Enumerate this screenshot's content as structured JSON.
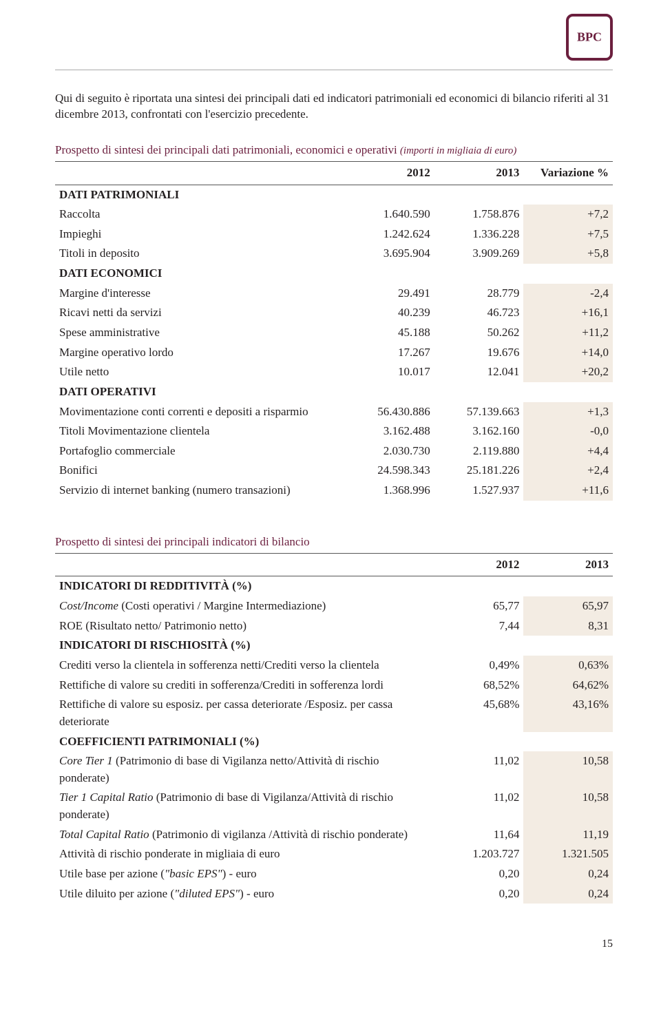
{
  "intro": "Qui di seguito è riportata una sintesi dei principali dati ed indicatori patrimoniali ed economici di bilancio riferiti al 31 dicembre 2013, confrontati con l'esercizio precedente.",
  "table1": {
    "title": "Prospetto di sintesi dei principali dati patrimoniali, economici e operativi",
    "note": "(importi in migliaia di euro)",
    "headers": [
      "2012",
      "2013",
      "Variazione %"
    ],
    "sections": [
      {
        "heading": "DATI PATRIMONIALI",
        "rows": [
          {
            "label": "Raccolta",
            "a": "1.640.590",
            "b": "1.758.876",
            "c": "+7,2"
          },
          {
            "label": "Impieghi",
            "a": "1.242.624",
            "b": "1.336.228",
            "c": "+7,5"
          },
          {
            "label": "Titoli in deposito",
            "a": "3.695.904",
            "b": "3.909.269",
            "c": "+5,8"
          }
        ]
      },
      {
        "heading": "DATI ECONOMICI",
        "rows": [
          {
            "label": "Margine d'interesse",
            "a": "29.491",
            "b": "28.779",
            "c": "-2,4"
          },
          {
            "label": "Ricavi netti da servizi",
            "a": "40.239",
            "b": "46.723",
            "c": "+16,1"
          },
          {
            "label": "Spese amministrative",
            "a": "45.188",
            "b": "50.262",
            "c": "+11,2"
          },
          {
            "label": "Margine operativo lordo",
            "a": "17.267",
            "b": "19.676",
            "c": "+14,0"
          },
          {
            "label": "Utile netto",
            "a": "10.017",
            "b": "12.041",
            "c": "+20,2"
          }
        ]
      },
      {
        "heading": "DATI OPERATIVI",
        "rows": [
          {
            "label": "Movimentazione conti correnti e depositi a risparmio",
            "a": "56.430.886",
            "b": "57.139.663",
            "c": "+1,3"
          },
          {
            "label": "Titoli Movimentazione clientela",
            "a": "3.162.488",
            "b": "3.162.160",
            "c": "-0,0"
          },
          {
            "label": "Portafoglio commerciale",
            "a": "2.030.730",
            "b": "2.119.880",
            "c": "+4,4"
          },
          {
            "label": "Bonifici",
            "a": "24.598.343",
            "b": "25.181.226",
            "c": "+2,4"
          },
          {
            "label": "Servizio di internet banking (numero transazioni)",
            "a": "1.368.996",
            "b": "1.527.937",
            "c": "+11,6"
          }
        ]
      }
    ]
  },
  "table2": {
    "title": "Prospetto di sintesi dei principali indicatori di bilancio",
    "headers": [
      "2012",
      "2013"
    ],
    "sections": [
      {
        "heading": "INDICATORI DI REDDITIVITÀ (%)",
        "rows": [
          {
            "label_pre_i": "Cost/Income",
            "label_post": " (Costi operativi / Margine Intermediazione)",
            "a": "65,77",
            "b": "65,97"
          },
          {
            "label": "ROE (Risultato netto/ Patrimonio netto)",
            "a": "7,44",
            "b": "8,31"
          }
        ]
      },
      {
        "heading": "INDICATORI DI RISCHIOSITÀ (%)",
        "rows": [
          {
            "label": "Crediti verso la clientela in sofferenza netti/Crediti verso la clientela",
            "a": "0,49%",
            "b": "0,63%"
          },
          {
            "label": "Rettifiche di valore su crediti in sofferenza/Crediti in sofferenza lordi",
            "a": "68,52%",
            "b": "64,62%"
          },
          {
            "label": "Rettifiche di valore su esposiz. per cassa deteriorate /Esposiz. per cassa deteriorate",
            "a": "45,68%",
            "b": "43,16%"
          }
        ]
      },
      {
        "heading": "COEFFICIENTI PATRIMONIALI (%)",
        "rows": [
          {
            "label_pre_i": "Core Tier 1",
            "label_post": " (Patrimonio di base di Vigilanza netto/Attività di rischio ponderate)",
            "a": "11,02",
            "b": "10,58"
          },
          {
            "label_pre_i": "Tier 1 Capital Ratio",
            "label_post": " (Patrimonio di base di Vigilanza/Attività di rischio ponderate)",
            "a": "11,02",
            "b": "10,58"
          },
          {
            "label_pre_i": "Total Capital Ratio",
            "label_post": " (Patrimonio di vigilanza /Attività di rischio ponderate)",
            "a": "11,64",
            "b": "11,19"
          },
          {
            "label": "Attività di rischio ponderate in migliaia di euro",
            "a": "1.203.727",
            "b": "1.321.505"
          },
          {
            "label_pre": "Utile base per azione (",
            "label_i": "\"basic EPS\"",
            "label_post2": ") - euro",
            "a": "0,20",
            "b": "0,24"
          },
          {
            "label_pre": "Utile diluito per azione (",
            "label_i": "\"diluted EPS\"",
            "label_post2": ") - euro",
            "a": "0,20",
            "b": "0,24"
          }
        ]
      }
    ]
  },
  "page_number": "15"
}
